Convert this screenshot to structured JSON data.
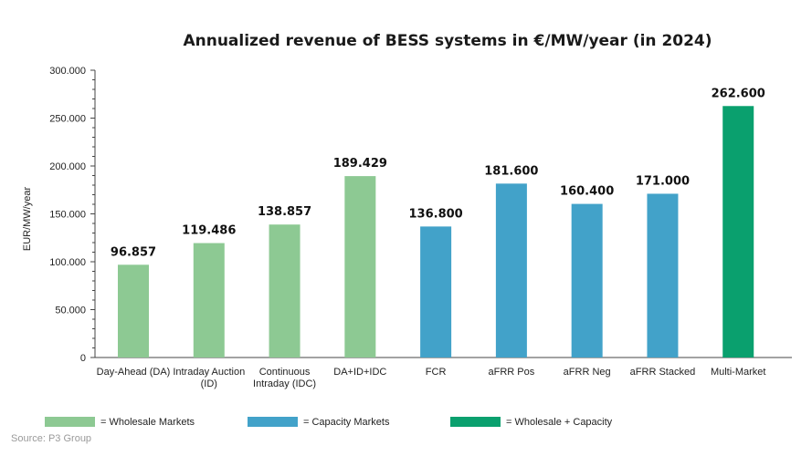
{
  "chart_data": {
    "type": "bar",
    "title": "Annualized revenue of BESS systems in €/MW/year (in 2024)",
    "ylabel": "EUR/MW/year",
    "xlabel": "",
    "ylim": [
      0,
      300000
    ],
    "yticks": [
      0,
      50000,
      100000,
      150000,
      200000,
      250000,
      300000
    ],
    "ytick_labels": [
      "0",
      "50.000",
      "100.000",
      "150.000",
      "200.000",
      "250.000",
      "300.000"
    ],
    "categories": [
      [
        "Day-Ahead (DA)"
      ],
      [
        "Intraday Auction",
        "(ID)"
      ],
      [
        "Continuous",
        "Intraday (IDC)"
      ],
      [
        "DA+ID+IDC"
      ],
      [
        "FCR"
      ],
      [
        "aFRR Pos"
      ],
      [
        "aFRR Neg"
      ],
      [
        "aFRR Stacked"
      ],
      [
        "Multi-Market"
      ]
    ],
    "values": [
      96857,
      119486,
      138857,
      189429,
      136800,
      181600,
      160400,
      171000,
      262600
    ],
    "value_labels": [
      "96.857",
      "119.486",
      "138.857",
      "189.429",
      "136.800",
      "181.600",
      "160.400",
      "171.000",
      "262.600"
    ],
    "groups": [
      "wholesale",
      "wholesale",
      "wholesale",
      "wholesale",
      "capacity",
      "capacity",
      "capacity",
      "capacity",
      "combined"
    ],
    "colors": {
      "wholesale": "#8dc993",
      "capacity": "#42a2c9",
      "combined": "#0aa06e"
    },
    "legend": [
      {
        "group": "wholesale",
        "label": "= Wholesale Markets"
      },
      {
        "group": "capacity",
        "label": "= Capacity Markets"
      },
      {
        "group": "combined",
        "label": "= Wholesale + Capacity"
      }
    ],
    "legend_position": "bottom",
    "grid": false
  },
  "source": "Source: P3 Group"
}
